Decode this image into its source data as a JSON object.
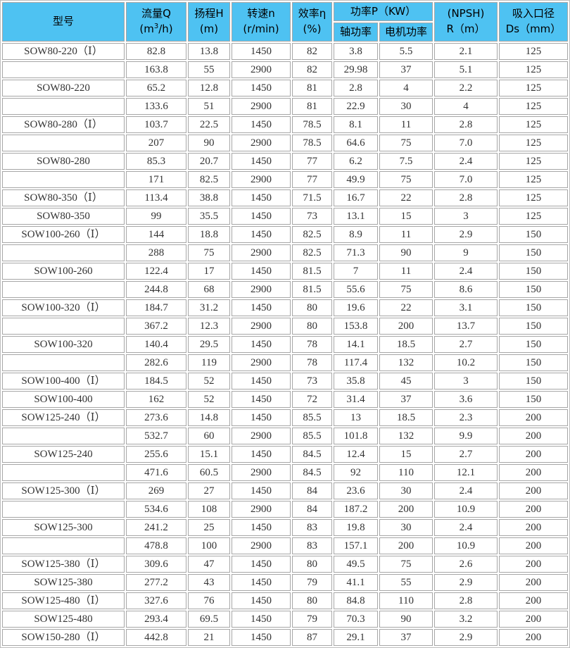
{
  "colors": {
    "header_bg": "#4ec2f2",
    "header_text": "#000000",
    "body_text": "#333333",
    "cell_border": "#a6a6a6",
    "outer_border": "#bdbdbd",
    "background": "#ffffff"
  },
  "table": {
    "header": {
      "model": "型号",
      "flow_line1": "流量Q",
      "flow_line2_pre": "(m",
      "flow_line2_sup": "3",
      "flow_line2_post": "/h)",
      "head_line1": "扬程H",
      "head_line2": "(m)",
      "speed_line1": "转速n",
      "speed_line2": "(r/min)",
      "eff_line1": "效率η",
      "eff_line2": "(%)",
      "power_group": "功率P（KW）",
      "shaft_power": "轴功率",
      "motor_power": "电机功率",
      "npsh_line1": "(NPSH)",
      "npsh_line2": "R（m）",
      "suction_line1": "吸入口径",
      "suction_line2": "Ds（mm）"
    },
    "rows": [
      [
        "SOW80-220（Ⅰ）",
        "82.8",
        "13.8",
        "1450",
        "82",
        "3.8",
        "5.5",
        "2.1",
        "125"
      ],
      [
        "",
        "163.8",
        "55",
        "2900",
        "82",
        "29.98",
        "37",
        "5.1",
        "125"
      ],
      [
        "SOW80-220",
        "65.2",
        "12.8",
        "1450",
        "81",
        "2.8",
        "4",
        "2.2",
        "125"
      ],
      [
        "",
        "133.6",
        "51",
        "2900",
        "81",
        "22.9",
        "30",
        "4",
        "125"
      ],
      [
        "SOW80-280（Ⅰ）",
        "103.7",
        "22.5",
        "1450",
        "78.5",
        "8.1",
        "11",
        "2.8",
        "125"
      ],
      [
        "",
        "207",
        "90",
        "2900",
        "78.5",
        "64.6",
        "75",
        "7.0",
        "125"
      ],
      [
        "SOW80-280",
        "85.3",
        "20.7",
        "1450",
        "77",
        "6.2",
        "7.5",
        "2.4",
        "125"
      ],
      [
        "",
        "171",
        "82.5",
        "2900",
        "77",
        "49.9",
        "75",
        "7.0",
        "125"
      ],
      [
        "SOW80-350（Ⅰ）",
        "113.4",
        "38.8",
        "1450",
        "71.5",
        "16.7",
        "22",
        "2.8",
        "125"
      ],
      [
        "SOW80-350",
        "99",
        "35.5",
        "1450",
        "73",
        "13.1",
        "15",
        "3",
        "125"
      ],
      [
        "SOW100-260（Ⅰ）",
        "144",
        "18.8",
        "1450",
        "82.5",
        "8.9",
        "11",
        "2.9",
        "150"
      ],
      [
        "",
        "288",
        "75",
        "2900",
        "82.5",
        "71.3",
        "90",
        "9",
        "150"
      ],
      [
        "SOW100-260",
        "122.4",
        "17",
        "1450",
        "81.5",
        "7",
        "11",
        "2.4",
        "150"
      ],
      [
        "",
        "244.8",
        "68",
        "2900",
        "81.5",
        "55.6",
        "75",
        "8.6",
        "150"
      ],
      [
        "SOW100-320（Ⅰ）",
        "184.7",
        "31.2",
        "1450",
        "80",
        "19.6",
        "22",
        "3.1",
        "150"
      ],
      [
        "",
        "367.2",
        "12.3",
        "2900",
        "80",
        "153.8",
        "200",
        "13.7",
        "150"
      ],
      [
        "SOW100-320",
        "140.4",
        "29.5",
        "1450",
        "78",
        "14.1",
        "18.5",
        "2.7",
        "150"
      ],
      [
        "",
        "282.6",
        "119",
        "2900",
        "78",
        "117.4",
        "132",
        "10.2",
        "150"
      ],
      [
        "SOW100-400（Ⅰ）",
        "184.5",
        "52",
        "1450",
        "73",
        "35.8",
        "45",
        "3",
        "150"
      ],
      [
        "SOW100-400",
        "162",
        "52",
        "1450",
        "72",
        "31.4",
        "37",
        "3.6",
        "150"
      ],
      [
        "SOW125-240（Ⅰ）",
        "273.6",
        "14.8",
        "1450",
        "85.5",
        "13",
        "18.5",
        "2.3",
        "200"
      ],
      [
        "",
        "532.7",
        "60",
        "2900",
        "85.5",
        "101.8",
        "132",
        "9.9",
        "200"
      ],
      [
        "SOW125-240",
        "255.6",
        "15.1",
        "1450",
        "84.5",
        "12.4",
        "15",
        "2.7",
        "200"
      ],
      [
        "",
        "471.6",
        "60.5",
        "2900",
        "84.5",
        "92",
        "110",
        "12.1",
        "200"
      ],
      [
        "SOW125-300（Ⅰ）",
        "269",
        "27",
        "1450",
        "84",
        "23.6",
        "30",
        "2.4",
        "200"
      ],
      [
        "",
        "534.6",
        "108",
        "2900",
        "84",
        "187.2",
        "200",
        "10.9",
        "200"
      ],
      [
        "SOW125-300",
        "241.2",
        "25",
        "1450",
        "83",
        "19.8",
        "30",
        "2.4",
        "200"
      ],
      [
        "",
        "478.8",
        "100",
        "2900",
        "83",
        "157.1",
        "200",
        "10.9",
        "200"
      ],
      [
        "SOW125-380（Ⅰ）",
        "309.6",
        "47",
        "1450",
        "80",
        "49.5",
        "75",
        "2.6",
        "200"
      ],
      [
        "SOW125-380",
        "277.2",
        "43",
        "1450",
        "79",
        "41.1",
        "55",
        "2.9",
        "200"
      ],
      [
        "SOW125-480（Ⅰ）",
        "327.6",
        "76",
        "1450",
        "80",
        "84.8",
        "110",
        "2.8",
        "200"
      ],
      [
        "SOW125-480",
        "293.4",
        "69.5",
        "1450",
        "79",
        "70.3",
        "90",
        "3.2",
        "200"
      ],
      [
        "SOW150-280（Ⅰ）",
        "442.8",
        "21",
        "1450",
        "87",
        "29.1",
        "37",
        "2.9",
        "200"
      ]
    ]
  }
}
